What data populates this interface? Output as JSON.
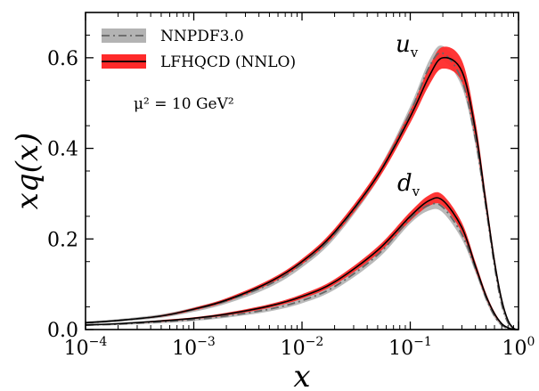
{
  "chart_data": {
    "type": "line",
    "xlabel": "x",
    "ylabel": "xq(x)",
    "xscale": "log",
    "xlim": [
      0.0001,
      1
    ],
    "ylim": [
      0.0,
      0.7
    ],
    "x_ticks": [
      {
        "value": 0.0001,
        "base": "10",
        "exp": "−4"
      },
      {
        "value": 0.001,
        "base": "10",
        "exp": "−3"
      },
      {
        "value": 0.01,
        "base": "10",
        "exp": "−2"
      },
      {
        "value": 0.1,
        "base": "10",
        "exp": "−1"
      },
      {
        "value": 1,
        "base": "10",
        "exp": "0"
      }
    ],
    "y_ticks": [
      {
        "value": 0.0,
        "label": "0.0"
      },
      {
        "value": 0.2,
        "label": "0.2"
      },
      {
        "value": 0.4,
        "label": "0.4"
      },
      {
        "value": 0.6,
        "label": "0.6"
      }
    ],
    "legend": {
      "placement": "top-left",
      "entries": [
        {
          "label": "NNPDF3.0",
          "style": "dashdot-band",
          "color": "#666666",
          "band_color": "#b3b3b3"
        },
        {
          "label": "LFHQCD (NNLO)",
          "style": "solid-band",
          "color": "#000000",
          "band_color": "#ff2a2a"
        }
      ]
    },
    "annotation": "μ² = 10 GeV²",
    "series": [
      {
        "label_main": "u",
        "label_sub": "v",
        "kind": "LFHQCD",
        "x": [
          0.0001,
          0.0002,
          0.0005,
          0.001,
          0.002,
          0.005,
          0.01,
          0.02,
          0.05,
          0.1,
          0.15,
          0.2,
          0.3,
          0.4,
          0.5,
          0.6,
          0.7,
          0.8,
          0.9,
          1.0
        ],
        "central": [
          0.015,
          0.02,
          0.03,
          0.045,
          0.065,
          0.105,
          0.15,
          0.215,
          0.34,
          0.47,
          0.56,
          0.6,
          0.57,
          0.44,
          0.28,
          0.15,
          0.065,
          0.02,
          0.003,
          0.0
        ],
        "band": [
          0.0,
          0.0,
          0.002,
          0.003,
          0.004,
          0.005,
          0.006,
          0.008,
          0.01,
          0.014,
          0.02,
          0.024,
          0.024,
          0.02,
          0.015,
          0.01,
          0.006,
          0.003,
          0.001,
          0.0
        ]
      },
      {
        "label_main": "u",
        "label_sub": "v",
        "kind": "NNPDF3.0",
        "x": [
          0.0001,
          0.0002,
          0.0005,
          0.001,
          0.002,
          0.005,
          0.01,
          0.02,
          0.05,
          0.1,
          0.15,
          0.2,
          0.3,
          0.4,
          0.5,
          0.6,
          0.7,
          0.8,
          0.9,
          1.0
        ],
        "central": [
          0.015,
          0.02,
          0.03,
          0.044,
          0.063,
          0.1,
          0.145,
          0.21,
          0.34,
          0.48,
          0.58,
          0.61,
          0.55,
          0.42,
          0.27,
          0.14,
          0.055,
          0.015,
          0.002,
          0.0
        ],
        "band": [
          0.003,
          0.003,
          0.004,
          0.005,
          0.006,
          0.007,
          0.008,
          0.009,
          0.011,
          0.013,
          0.015,
          0.016,
          0.015,
          0.013,
          0.011,
          0.008,
          0.005,
          0.003,
          0.001,
          0.0
        ]
      },
      {
        "label_main": "d",
        "label_sub": "v",
        "kind": "LFHQCD",
        "x": [
          0.0001,
          0.0002,
          0.0005,
          0.001,
          0.002,
          0.005,
          0.01,
          0.02,
          0.05,
          0.1,
          0.15,
          0.2,
          0.3,
          0.4,
          0.5,
          0.6,
          0.7,
          0.8,
          0.9,
          1.0
        ],
        "central": [
          0.01,
          0.013,
          0.019,
          0.025,
          0.034,
          0.052,
          0.073,
          0.105,
          0.175,
          0.25,
          0.285,
          0.285,
          0.225,
          0.14,
          0.075,
          0.035,
          0.013,
          0.004,
          0.0005,
          0.0
        ],
        "band": [
          0.0,
          0.0,
          0.002,
          0.002,
          0.003,
          0.004,
          0.005,
          0.006,
          0.008,
          0.01,
          0.012,
          0.012,
          0.011,
          0.009,
          0.006,
          0.004,
          0.002,
          0.001,
          0.0005,
          0.0
        ]
      },
      {
        "label_main": "d",
        "label_sub": "v",
        "kind": "NNPDF3.0",
        "x": [
          0.0001,
          0.0002,
          0.0005,
          0.001,
          0.002,
          0.005,
          0.01,
          0.02,
          0.05,
          0.1,
          0.15,
          0.2,
          0.3,
          0.4,
          0.5,
          0.6,
          0.7,
          0.8,
          0.9,
          1.0
        ],
        "central": [
          0.01,
          0.012,
          0.017,
          0.022,
          0.03,
          0.045,
          0.064,
          0.095,
          0.165,
          0.245,
          0.275,
          0.27,
          0.21,
          0.135,
          0.07,
          0.03,
          0.01,
          0.003,
          0.0005,
          0.0
        ],
        "band": [
          0.002,
          0.002,
          0.003,
          0.003,
          0.004,
          0.005,
          0.006,
          0.007,
          0.009,
          0.011,
          0.012,
          0.012,
          0.011,
          0.009,
          0.006,
          0.004,
          0.002,
          0.001,
          0.0005,
          0.0
        ]
      }
    ]
  }
}
